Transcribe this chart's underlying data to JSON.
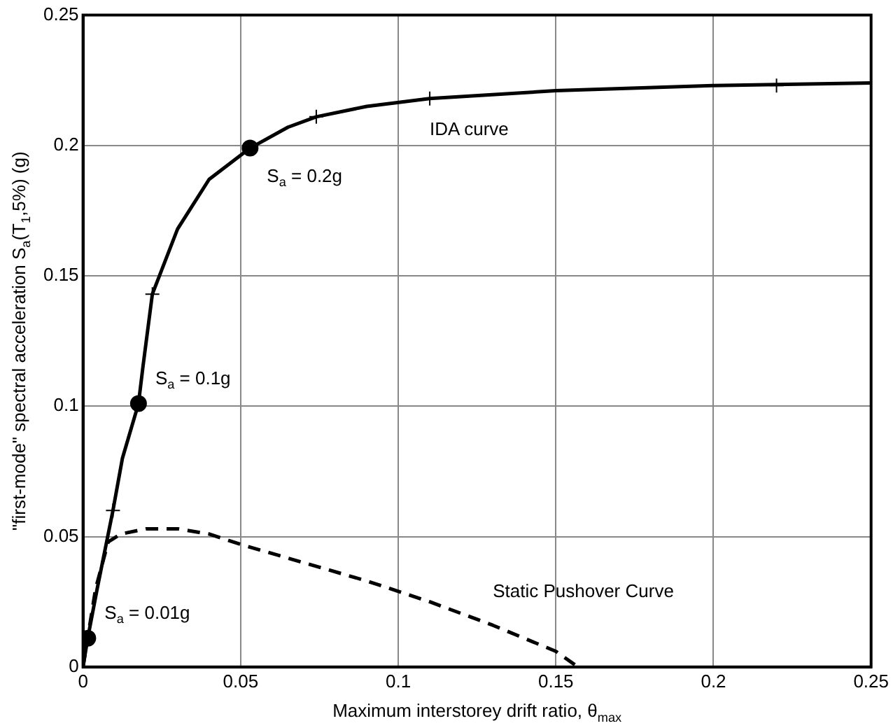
{
  "chart_data": {
    "type": "line",
    "xlabel": "Maximum interstorey drift ratio, θ$_{max}$",
    "ylabel": "\"first-mode\" spectral acceleration S$_{a}$(T$_{1}$,5%) (g)",
    "xlim": [
      0,
      0.25
    ],
    "xticks": [
      0,
      0.05,
      0.1,
      0.15,
      0.2,
      0.25
    ],
    "ylim": [
      0,
      0.25
    ],
    "yticks": [
      0,
      0.05,
      0.1,
      0.15,
      0.2,
      0.25
    ],
    "grid": true,
    "legend": false,
    "series": [
      {
        "name": "IDA curve",
        "color": "#000000",
        "line_style": "solid",
        "marker": "none",
        "x": [
          0,
          0.0015,
          0.0045,
          0.0095,
          0.0125,
          0.0176,
          0.019,
          0.022,
          0.03,
          0.04,
          0.053,
          0.065,
          0.074,
          0.09,
          0.11,
          0.15,
          0.2,
          0.25
        ],
        "values": [
          0,
          0.011,
          0.03,
          0.06,
          0.08,
          0.101,
          0.115,
          0.143,
          0.168,
          0.187,
          0.199,
          0.207,
          0.211,
          0.215,
          0.218,
          0.221,
          0.223,
          0.224
        ]
      },
      {
        "name": "Static Pushover Curve",
        "color": "#000000",
        "line_style": "dashed",
        "marker": "none",
        "x": [
          0,
          0.004,
          0.008,
          0.012,
          0.02,
          0.03,
          0.04,
          0.05,
          0.07,
          0.09,
          0.11,
          0.13,
          0.15,
          0.157
        ],
        "values": [
          0,
          0.03,
          0.048,
          0.051,
          0.053,
          0.053,
          0.051,
          0.047,
          0.04,
          0.033,
          0.025,
          0.016,
          0.006,
          0
        ]
      },
      {
        "type": "scatter",
        "color": "#000000",
        "marker": "cross",
        "x": [
          0.0095,
          0.022,
          0.074,
          0.11,
          0.22
        ],
        "values": [
          0.06,
          0.143,
          0.211,
          0.218,
          0.223
        ]
      },
      {
        "type": "scatter",
        "color": "#000000",
        "marker": "circle",
        "x": [
          0.0015,
          0.0176,
          0.053
        ],
        "values": [
          0.011,
          0.101,
          0.199
        ]
      }
    ],
    "annotations": [
      {
        "text": "S$_{a}$ = 0.2g",
        "x": 0.053,
        "y": 0.199
      },
      {
        "text": "S$_{a}$ = 0.1g",
        "x": 0.0176,
        "y": 0.101
      },
      {
        "text": "S$_{a}$ = 0.01g",
        "x": 0.0015,
        "y": 0.011
      }
    ]
  }
}
